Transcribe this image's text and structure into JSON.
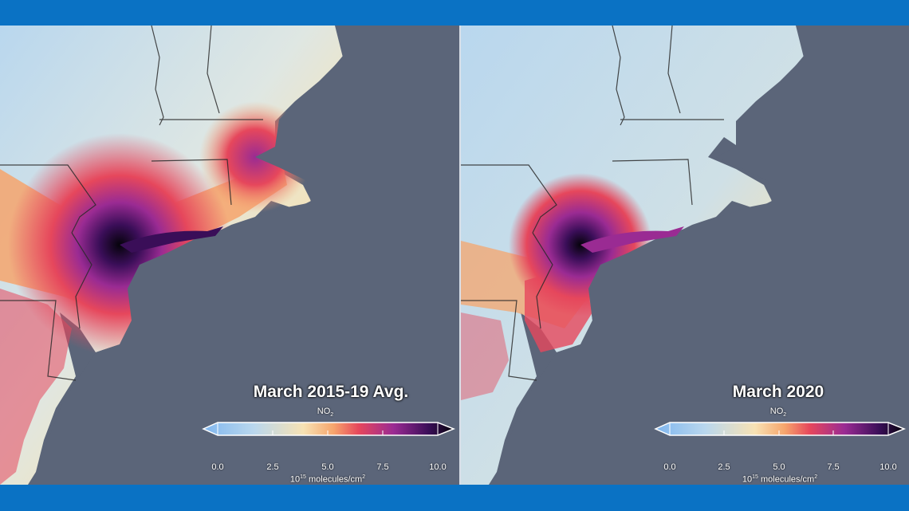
{
  "colors": {
    "frame": "#0a72c4",
    "ocean": "#5b6579",
    "scale": [
      "#7fb6ef",
      "#b9d7ee",
      "#f7e2b4",
      "#f6a56c",
      "#e6475c",
      "#9a2b93",
      "#3a0e58",
      "#05030a"
    ]
  },
  "panels": [
    {
      "title": "March 2015-19 Avg.",
      "variable": "NO",
      "variable_sub": "2",
      "ticks": [
        "0.0",
        "2.5",
        "5.0",
        "7.5",
        "10.0"
      ],
      "units_base": "10",
      "units_exp": "15",
      "units_rest": " molecules/cm",
      "units_sq": "2",
      "intensity": "high"
    },
    {
      "title": "March 2020",
      "variable": "NO",
      "variable_sub": "2",
      "ticks": [
        "0.0",
        "2.5",
        "5.0",
        "7.5",
        "10.0"
      ],
      "units_base": "10",
      "units_exp": "15",
      "units_rest": " molecules/cm",
      "units_sq": "2",
      "intensity": "reduced"
    }
  ]
}
